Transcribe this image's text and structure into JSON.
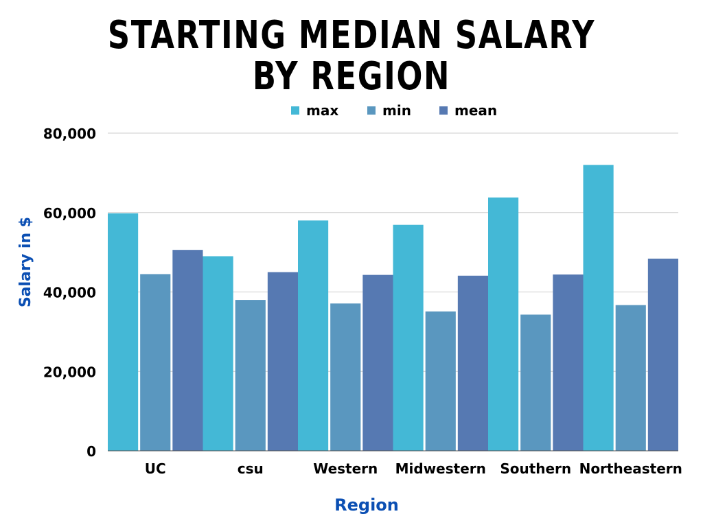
{
  "chart_data": {
    "type": "bar",
    "title_lines": [
      "STARTING MEDIAN SALARY",
      "BY REGION"
    ],
    "xlabel": "Region",
    "ylabel": "Salary in $",
    "ylim": [
      0,
      80000
    ],
    "yticks": [
      0,
      20000,
      40000,
      60000,
      80000
    ],
    "ytick_labels": [
      "0",
      "20,000",
      "40,000",
      "60,000",
      "80,000"
    ],
    "grid": true,
    "legend_position": "top-center",
    "categories": [
      "UC",
      "csu",
      "Western",
      "Midwestern",
      "Southern",
      "Northeastern"
    ],
    "series": [
      {
        "name": "max",
        "color": "#44b8d6",
        "values": [
          59800,
          49000,
          58000,
          56900,
          63800,
          72000
        ]
      },
      {
        "name": "min",
        "color": "#5a97bf",
        "values": [
          44500,
          38000,
          37100,
          35100,
          34300,
          36700
        ]
      },
      {
        "name": "mean",
        "color": "#5679b2",
        "values": [
          50600,
          45000,
          44300,
          44100,
          44400,
          48400
        ]
      }
    ],
    "label_color": "#0b4fb3"
  }
}
